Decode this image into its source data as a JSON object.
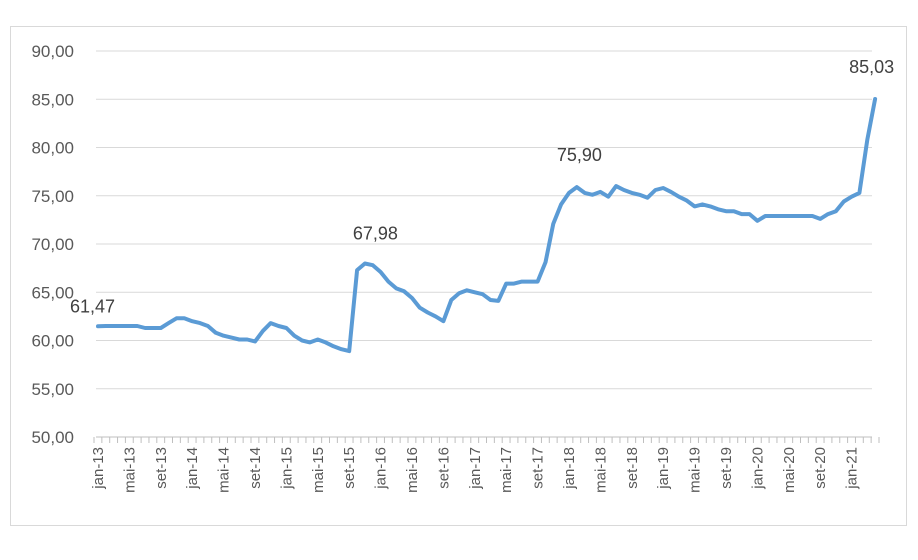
{
  "chart_data": {
    "type": "line",
    "title": "",
    "xlabel": "",
    "ylabel": "",
    "ylim": [
      50,
      90
    ],
    "y_ticks": [
      "50,00",
      "55,00",
      "60,00",
      "65,00",
      "70,00",
      "75,00",
      "80,00",
      "85,00",
      "90,00"
    ],
    "x_tick_labels": [
      "jan-13",
      "mai-13",
      "set-13",
      "jan-14",
      "mai-14",
      "set-14",
      "jan-15",
      "mai-15",
      "set-15",
      "jan-16",
      "mai-16",
      "set-16",
      "jan-17",
      "mai-17",
      "set-17",
      "jan-18",
      "mai-18",
      "set-18",
      "jan-19",
      "mai-19",
      "set-19",
      "jan-20",
      "mai-20",
      "set-20",
      "jan-21"
    ],
    "grid": "horizontal",
    "legend": "none",
    "series_color": "#5b9bd5",
    "series": [
      {
        "values": [
          61.47,
          61.5,
          61.5,
          61.5,
          61.5,
          61.5,
          61.3,
          61.3,
          61.3,
          61.8,
          62.3,
          62.3,
          62.0,
          61.8,
          61.5,
          60.8,
          60.5,
          60.3,
          60.1,
          60.1,
          59.9,
          61.0,
          61.8,
          61.5,
          61.3,
          60.5,
          60.0,
          59.8,
          60.1,
          59.8,
          59.4,
          59.1,
          58.9,
          67.3,
          67.98,
          67.8,
          67.1,
          66.1,
          65.4,
          65.1,
          64.4,
          63.4,
          62.9,
          62.5,
          62.0,
          64.2,
          64.9,
          65.2,
          65.0,
          64.8,
          64.2,
          64.1,
          65.9,
          65.9,
          66.1,
          66.1,
          66.1,
          68.1,
          72.1,
          74.1,
          75.3,
          75.9,
          75.3,
          75.1,
          75.4,
          74.9,
          76.0,
          75.6,
          75.3,
          75.1,
          74.8,
          75.6,
          75.8,
          75.4,
          74.9,
          74.5,
          73.9,
          74.1,
          73.9,
          73.6,
          73.4,
          73.4,
          73.1,
          73.1,
          72.4,
          72.9,
          72.9,
          72.9,
          72.9,
          72.9,
          72.9,
          72.9,
          72.6,
          73.1,
          73.4,
          74.4,
          74.9,
          75.3,
          80.8,
          85.03
        ]
      }
    ],
    "annotations": [
      {
        "index": 0,
        "label": "61,47"
      },
      {
        "index": 34,
        "label": "67,98"
      },
      {
        "index": 61,
        "label": "75,90"
      },
      {
        "index": 99,
        "label": "85,03"
      }
    ]
  }
}
